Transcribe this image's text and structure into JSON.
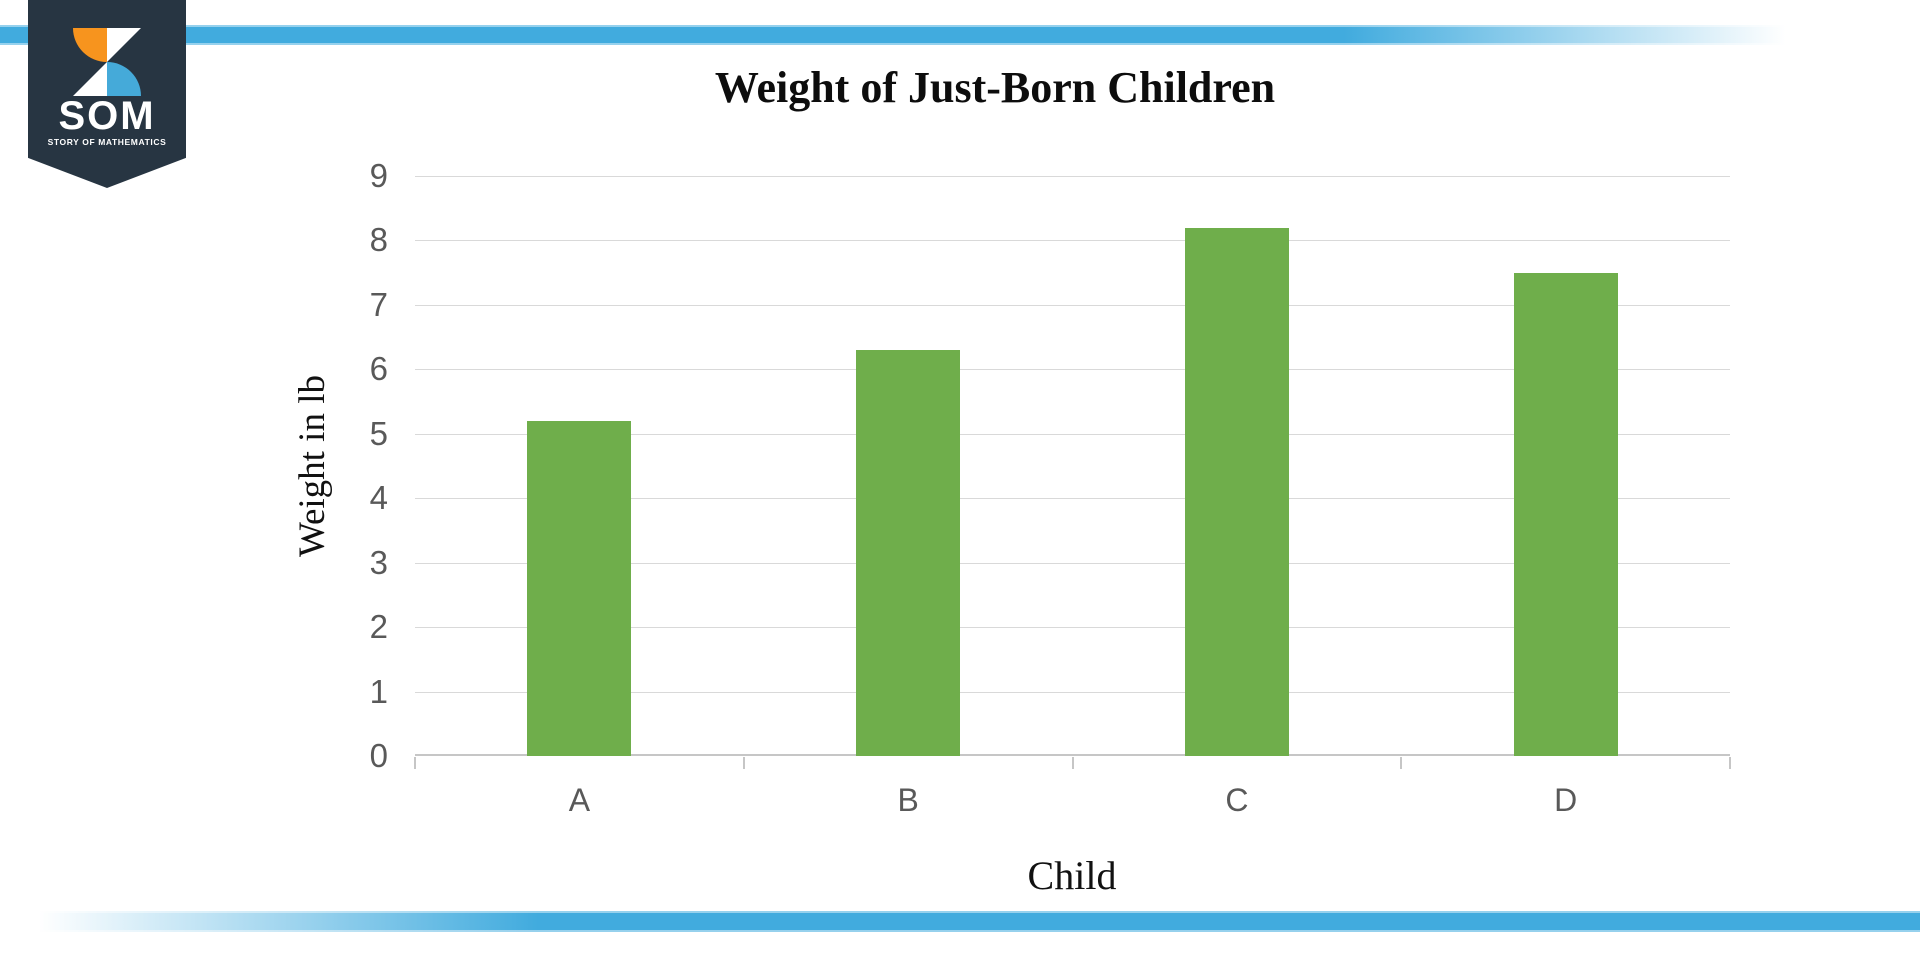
{
  "brand": {
    "som": "SOM",
    "tagline": "STORY OF MATHEMATICS",
    "colors": {
      "banner_navy": "#273542",
      "orange": "#f7941e",
      "light_blue": "#45aad9"
    }
  },
  "decor": {
    "stripe_blue": "#41abde"
  },
  "chart_data": {
    "type": "bar",
    "title": "Weight of Just-Born Children",
    "xlabel": "Child",
    "ylabel": "Weight in lb",
    "categories": [
      "A",
      "B",
      "C",
      "D"
    ],
    "values": [
      5.2,
      6.3,
      8.2,
      7.5
    ],
    "ylim": [
      0,
      9
    ],
    "yticks": [
      0,
      1,
      2,
      3,
      4,
      5,
      6,
      7,
      8,
      9
    ],
    "grid": "horizontal",
    "legend": "none",
    "bar_color": "#6fae4b",
    "gridline_color": "#d9d9d9",
    "tick_label_color": "#595959"
  }
}
